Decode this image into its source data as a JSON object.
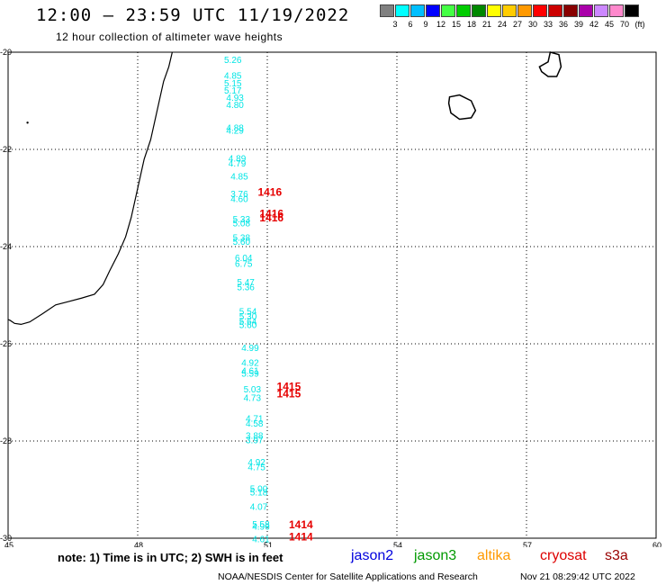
{
  "header": {
    "title": "12:00 – 23:59 UTC 11/19/2022",
    "subtitle": "12 hour collection of altimeter wave heights"
  },
  "colorbar": {
    "colors": [
      "#808080",
      "#00ffff",
      "#00bfff",
      "#0000ff",
      "#44ff44",
      "#00cc00",
      "#008800",
      "#ffff00",
      "#ffcc00",
      "#ff9900",
      "#ff0000",
      "#cc0000",
      "#880000",
      "#aa00aa",
      "#cc88ff",
      "#ff88cc",
      "#000000"
    ],
    "tick_labels": [
      "3",
      "6",
      "9",
      "12",
      "15",
      "18",
      "21",
      "24",
      "27",
      "30",
      "33",
      "36",
      "39",
      "42",
      "45",
      "70",
      "(ft)"
    ]
  },
  "map": {
    "lon_labels": [
      "45",
      "48",
      "51",
      "54",
      "57",
      "60"
    ],
    "lat_labels": [
      "-20",
      "-22",
      "-24",
      "-26",
      "-28",
      "-30"
    ],
    "swh_labels": [
      {
        "text": "5.26",
        "lon": 50.0,
        "lat": -20.22
      },
      {
        "text": "4.85",
        "lon": 50.0,
        "lat": -20.55
      },
      {
        "text": "5.15",
        "lon": 50.0,
        "lat": -20.7
      },
      {
        "text": "5.17",
        "lon": 50.0,
        "lat": -20.85
      },
      {
        "text": "4.93",
        "lon": 50.05,
        "lat": -21.0
      },
      {
        "text": "4.80",
        "lon": 50.05,
        "lat": -21.15
      },
      {
        "text": "4.88",
        "lon": 50.05,
        "lat": -21.62
      },
      {
        "text": "4.29",
        "lon": 50.05,
        "lat": -21.68
      },
      {
        "text": "4.89",
        "lon": 50.1,
        "lat": -22.25
      },
      {
        "text": "4.79",
        "lon": 50.1,
        "lat": -22.35
      },
      {
        "text": "4.85",
        "lon": 50.15,
        "lat": -22.62
      },
      {
        "text": "3.76",
        "lon": 50.15,
        "lat": -22.98
      },
      {
        "text": "4.60",
        "lon": 50.15,
        "lat": -23.08
      },
      {
        "text": "5.33",
        "lon": 50.2,
        "lat": -23.5
      },
      {
        "text": "5.08",
        "lon": 50.2,
        "lat": -23.58
      },
      {
        "text": "5.38",
        "lon": 50.2,
        "lat": -23.88
      },
      {
        "text": "5.60",
        "lon": 50.2,
        "lat": -23.96
      },
      {
        "text": "6.04",
        "lon": 50.25,
        "lat": -24.3
      },
      {
        "text": "6.75",
        "lon": 50.25,
        "lat": -24.42
      },
      {
        "text": "5.47",
        "lon": 50.3,
        "lat": -24.8
      },
      {
        "text": "5.36",
        "lon": 50.3,
        "lat": -24.9
      },
      {
        "text": "5.54",
        "lon": 50.35,
        "lat": -25.4
      },
      {
        "text": "5.30",
        "lon": 50.35,
        "lat": -25.5
      },
      {
        "text": "5.64",
        "lon": 50.35,
        "lat": -25.6
      },
      {
        "text": "5.60",
        "lon": 50.35,
        "lat": -25.68
      },
      {
        "text": "4.99",
        "lon": 50.4,
        "lat": -26.15
      },
      {
        "text": "4.92",
        "lon": 50.4,
        "lat": -26.45
      },
      {
        "text": "4.61",
        "lon": 50.4,
        "lat": -26.62
      },
      {
        "text": "5.59",
        "lon": 50.4,
        "lat": -26.68
      },
      {
        "text": "5.03",
        "lon": 50.45,
        "lat": -27.0
      },
      {
        "text": "4.73",
        "lon": 50.45,
        "lat": -27.18
      },
      {
        "text": "4.71",
        "lon": 50.5,
        "lat": -27.6
      },
      {
        "text": "4.58",
        "lon": 50.5,
        "lat": -27.7
      },
      {
        "text": "3.88",
        "lon": 50.5,
        "lat": -27.95
      },
      {
        "text": "3.97",
        "lon": 50.5,
        "lat": -28.05
      },
      {
        "text": "4.92",
        "lon": 50.55,
        "lat": -28.5
      },
      {
        "text": "4.75",
        "lon": 50.55,
        "lat": -28.6
      },
      {
        "text": "5.00",
        "lon": 50.6,
        "lat": -29.05
      },
      {
        "text": "5.18",
        "lon": 50.6,
        "lat": -29.12
      },
      {
        "text": "4.07",
        "lon": 50.6,
        "lat": -29.42
      },
      {
        "text": "5.58",
        "lon": 50.65,
        "lat": -29.78
      },
      {
        "text": "4.96",
        "lon": 50.65,
        "lat": -29.82
      },
      {
        "text": "4.61",
        "lon": 50.65,
        "lat": -30.08
      }
    ],
    "time_labels": [
      {
        "text": "1416",
        "lon": 50.78,
        "lat": -22.95
      },
      {
        "text": "1416",
        "lon": 50.82,
        "lat": -23.4
      },
      {
        "text": "1416",
        "lon": 50.82,
        "lat": -23.48
      },
      {
        "text": "1415",
        "lon": 51.22,
        "lat": -26.95
      },
      {
        "text": "1415",
        "lon": 51.22,
        "lat": -27.1
      },
      {
        "text": "1414",
        "lon": 51.5,
        "lat": -29.8
      },
      {
        "text": "1414",
        "lon": 51.5,
        "lat": -30.05
      }
    ],
    "colors": {
      "coast": "#000000",
      "grid": "#000000",
      "swh": "#00e5e5",
      "time": "#e60000"
    }
  },
  "note": "note: 1) Time is in UTC; 2) SWH is in feet",
  "legend": [
    {
      "label": "jason2",
      "color": "#0000dd"
    },
    {
      "label": "jason3",
      "color": "#009900"
    },
    {
      "label": "altika",
      "color": "#ff9900"
    },
    {
      "label": "cryosat",
      "color": "#dd0000"
    },
    {
      "label": "s3a",
      "color": "#990000"
    }
  ],
  "footer": {
    "credit": "NOAA/NESDIS Center for Satellite Applications and Research",
    "timestamp": "Nov 21 08:29:42 UTC 2022"
  }
}
